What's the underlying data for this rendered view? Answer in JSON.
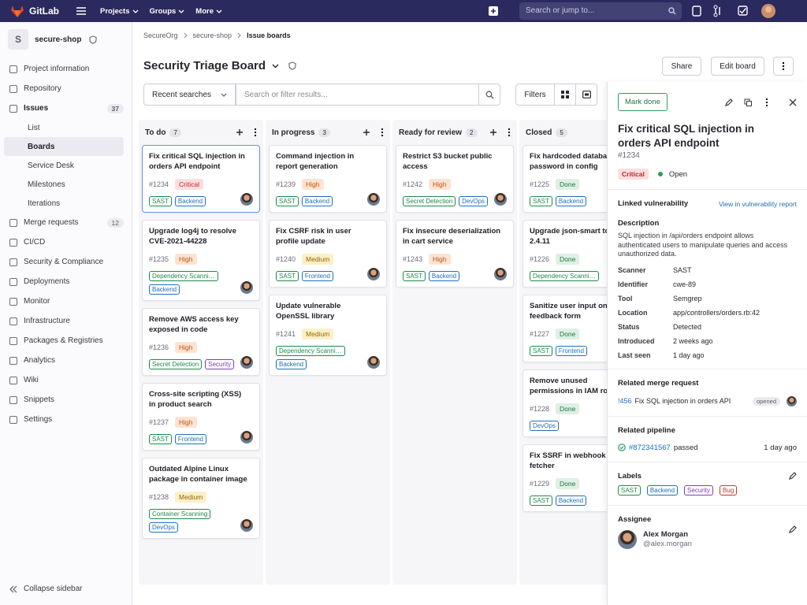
{
  "topbar": {
    "brand": "GitLab",
    "nav": [
      "Projects",
      "Groups",
      "More"
    ],
    "search": "Search or jump to..."
  },
  "sidebar": {
    "project_initial": "S",
    "project_name": "secure-shop",
    "items": [
      {
        "label": "Project information"
      },
      {
        "label": "Repository"
      },
      {
        "label": "Issues",
        "count": 37,
        "sub": [
          {
            "label": "List"
          },
          {
            "label": "Boards",
            "active": true
          },
          {
            "label": "Service Desk"
          },
          {
            "label": "Milestones"
          },
          {
            "label": "Iterations"
          }
        ]
      },
      {
        "label": "Merge requests",
        "count": 12
      },
      {
        "label": "CI/CD"
      },
      {
        "label": "Security & Compliance"
      },
      {
        "label": "Deployments"
      },
      {
        "label": "Monitor"
      },
      {
        "label": "Infrastructure"
      },
      {
        "label": "Packages & Registries"
      },
      {
        "label": "Analytics"
      },
      {
        "label": "Wiki"
      },
      {
        "label": "Snippets"
      },
      {
        "label": "Settings"
      }
    ],
    "collapse": "Collapse sidebar"
  },
  "breadcrumb": [
    "SecureOrg",
    "secure-shop",
    "Issue boards"
  ],
  "board": {
    "title": "Security Triage Board",
    "buttons": [
      "Share",
      "Edit board"
    ],
    "recent": "Recent searches",
    "filter_placeholder": "Search or filter results...",
    "filters": "Filters",
    "badge_colors": {
      "Critical": [
        "#fbdede",
        "#c0262d"
      ],
      "High": [
        "#fde3d1",
        "#c25410"
      ],
      "Medium": [
        "#fbf0c8",
        "#966400"
      ],
      "Done": [
        "#def0e3",
        "#217645"
      ]
    },
    "label_colors": {
      "SAST": "#1f8a4c",
      "Backend": "#1f6fbf",
      "Frontend": "#1f6fbf",
      "Dependency Scanning": "#1f8a4c",
      "Secret Detection": "#1f8a4c",
      "Security": "#7b3fc4",
      "Container Scanning": "#1f8a4c",
      "DevOps": "#1f6fbf",
      "Bug": "#c0392b"
    },
    "lists": [
      {
        "name": "To do",
        "count": 7,
        "cards": [
          {
            "title": "Fix critical SQL injection in orders API endpoint",
            "id": "#1234",
            "badge": "Critical",
            "labels": [
              "SAST",
              "Backend"
            ],
            "selected": true,
            "avatar": true
          },
          {
            "title": "Upgrade log4j to resolve CVE-2021-44228",
            "id": "#1235",
            "badge": "High",
            "labels": [
              "Dependency Scanning",
              "Backend"
            ],
            "avatar": true
          },
          {
            "title": "Remove AWS access key exposed in code",
            "id": "#1236",
            "badge": "High",
            "labels": [
              "Secret Detection",
              "Security"
            ],
            "avatar": true
          },
          {
            "title": "Cross-site scripting (XSS) in product search",
            "id": "#1237",
            "badge": "High",
            "labels": [
              "SAST",
              "Frontend"
            ],
            "avatar": true
          },
          {
            "title": "Outdated Alpine Linux package in container image",
            "id": "#1238",
            "badge": "Medium",
            "labels": [
              "Container Scanning",
              "DevOps"
            ],
            "avatar": true
          }
        ]
      },
      {
        "name": "In progress",
        "count": 3,
        "cards": [
          {
            "title": "Command injection in report generation",
            "id": "#1239",
            "badge": "High",
            "labels": [
              "SAST",
              "Backend"
            ],
            "avatar": true
          },
          {
            "title": "Fix CSRF risk in user profile update",
            "id": "#1240",
            "badge": "Medium",
            "labels": [
              "SAST",
              "Frontend"
            ],
            "avatar": true
          },
          {
            "title": "Update vulnerable OpenSSL library",
            "id": "#1241",
            "badge": "Medium",
            "labels": [
              "Dependency Scanning",
              "Backend"
            ],
            "avatar": true
          }
        ]
      },
      {
        "name": "Ready for review",
        "count": 2,
        "cards": [
          {
            "title": "Restrict S3 bucket public access",
            "id": "#1242",
            "badge": "High",
            "labels": [
              "Secret Detection",
              "DevOps"
            ],
            "avatar": true
          },
          {
            "title": "Fix insecure deserialization in cart service",
            "id": "#1243",
            "badge": "High",
            "labels": [
              "SAST",
              "Backend"
            ],
            "avatar": true
          }
        ]
      },
      {
        "name": "Closed",
        "count": 5,
        "cards": [
          {
            "title": "Fix hardcoded database password in config",
            "id": "#1225",
            "badge": "Done",
            "labels": [
              "SAST",
              "Backend"
            ]
          },
          {
            "title": "Upgrade json-smart to 2.4.11",
            "id": "#1226",
            "badge": "Done",
            "labels": [
              "Dependency Scanning"
            ]
          },
          {
            "title": "Sanitize user input on feedback form",
            "id": "#1227",
            "badge": "Done",
            "labels": [
              "SAST",
              "Frontend"
            ]
          },
          {
            "title": "Remove unused permissions in IAM role",
            "id": "#1228",
            "badge": "Done",
            "labels": [
              "DevOps"
            ]
          },
          {
            "title": "Fix SSRF in webhook URL fetcher",
            "id": "#1229",
            "badge": "Done",
            "labels": [
              "SAST",
              "Backend"
            ]
          }
        ]
      }
    ]
  },
  "detail": {
    "mark_done": "Mark done",
    "title": "Fix critical SQL injection in orders API endpoint",
    "id": "#1234",
    "severity": "Critical",
    "status": "Open",
    "linked_heading": "Linked vulnerability",
    "linked_link": "View in vulnerability report",
    "description_heading": "Description",
    "description": "SQL injection in /api/orders endpoint allows authenticated users to manipulate queries and access unauthorized data.",
    "fields": [
      {
        "label": "Scanner",
        "value": "SAST"
      },
      {
        "label": "Identifier",
        "value": "cwe-89"
      },
      {
        "label": "Tool",
        "value": "Semgrep"
      },
      {
        "label": "Location",
        "value": "app/controllers/orders.rb:42"
      },
      {
        "label": "Status",
        "value": "Detected"
      },
      {
        "label": "Introduced",
        "value": "2 weeks ago"
      },
      {
        "label": "Last seen",
        "value": "1 day ago"
      }
    ],
    "mr_heading": "Related merge request",
    "mr_id": "!456",
    "mr_title": "Fix SQL injection in orders API",
    "mr_state": "opened",
    "pipeline_heading": "Related pipeline",
    "pipeline_id": "#872341567",
    "pipeline_status": "passed",
    "pipeline_time": "1 day ago",
    "labels_heading": "Labels",
    "labels": [
      "SAST",
      "Backend",
      "Security",
      "Bug"
    ],
    "assignee_heading": "Assignee",
    "assignee_name": "Alex Morgan",
    "assignee_handle": "@alex.morgan"
  }
}
